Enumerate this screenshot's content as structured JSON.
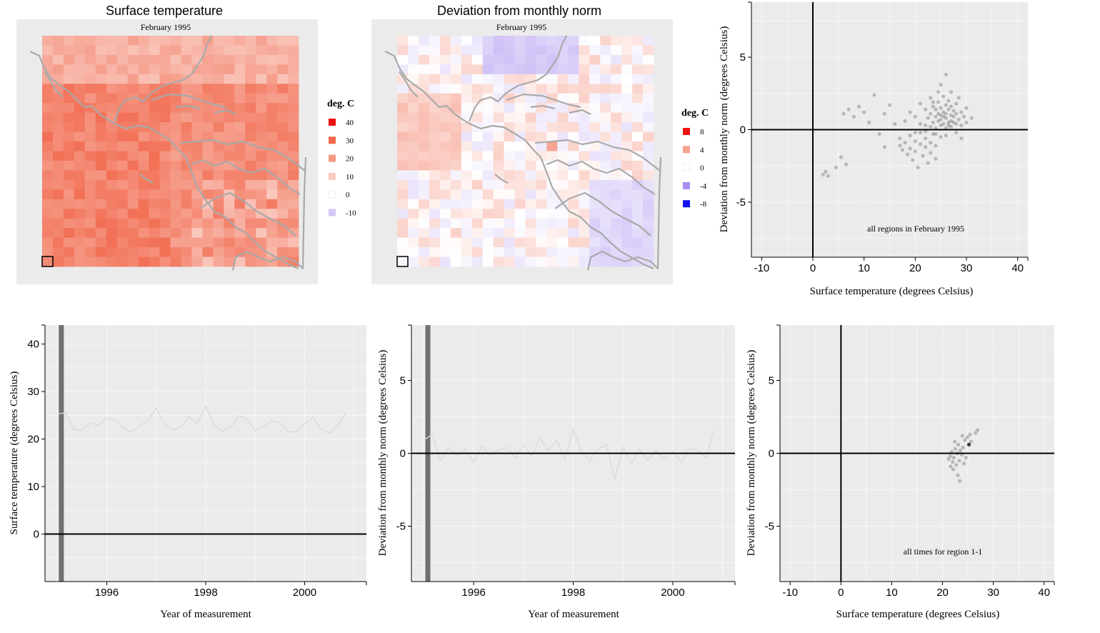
{
  "colors": {
    "panel_bg": "#ebebeb",
    "grid": "#f7f7f7",
    "coast": "#a9a9a9",
    "warm": "#ef1f10",
    "cold": "#2222ee",
    "sel_band": "#707070"
  },
  "map_left": {
    "title": "Surface temperature",
    "subtitle": "February 1995",
    "legend_title": "deg. C",
    "legend": [
      {
        "label": "40",
        "color": "#ee1111"
      },
      {
        "label": "30",
        "color": "#f1684c"
      },
      {
        "label": "20",
        "color": "#f59a82"
      },
      {
        "label": "10",
        "color": "#f9cbbd"
      },
      {
        "label": "0",
        "color": "#ffffff"
      },
      {
        "label": "-10",
        "color": "#d6c6f6"
      }
    ]
  },
  "map_right": {
    "title": "Deviation from monthly norm",
    "subtitle": "February 1995",
    "legend_title": "deg. C",
    "legend": [
      {
        "label": "8",
        "color": "#ee1111"
      },
      {
        "label": "4",
        "color": "#f7a38f"
      },
      {
        "label": "0",
        "color": "#ffffff"
      },
      {
        "label": "-4",
        "color": "#a98ef0"
      },
      {
        "label": "-8",
        "color": "#1111ee"
      }
    ]
  },
  "scatter_top": {
    "xlabel": "Surface temperature (degrees Celsius)",
    "ylabel": "Deviation from monthly norm (degrees Celsius)",
    "note": "all regions in February 1995",
    "xticks": [
      "-10",
      "0",
      "10",
      "20",
      "30",
      "40"
    ],
    "yticks": [
      "5",
      "0",
      "-5"
    ]
  },
  "line_temp": {
    "xlabel": "Year of measurement",
    "ylabel": "Surface temperature (degrees Celsius)",
    "xticks": [
      "1996",
      "1998",
      "2000"
    ],
    "yticks": [
      "40",
      "30",
      "20",
      "10",
      "0"
    ]
  },
  "line_dev": {
    "xlabel": "Year of measurement",
    "ylabel": "Deviation from monthly norm (degrees Celsius)",
    "xticks": [
      "1996",
      "1998",
      "2000"
    ],
    "yticks": [
      "5",
      "0",
      "-5"
    ]
  },
  "scatter_bottom": {
    "xlabel": "Surface temperature (degrees Celsius)",
    "ylabel": "Deviation from monthly norm (degrees Celsius)",
    "note": "all times for region 1-1",
    "xticks": [
      "-10",
      "0",
      "10",
      "20",
      "30",
      "40"
    ],
    "yticks": [
      "5",
      "0",
      "-5"
    ]
  },
  "chart_data": [
    {
      "type": "heatmap",
      "title": "Surface temperature",
      "subtitle": "February 1995",
      "grid": "24 x 24 regions",
      "value_range": [
        -10,
        40
      ],
      "selected_region": "1-1"
    },
    {
      "type": "heatmap",
      "title": "Deviation from monthly norm",
      "subtitle": "February 1995",
      "grid": "24 x 24 regions",
      "value_range": [
        -8,
        8
      ],
      "selected_region": "1-1"
    },
    {
      "type": "scatter",
      "xlabel": "Surface temperature (degrees Celsius)",
      "ylabel": "Deviation from monthly norm (degrees Celsius)",
      "xlim": [
        -12,
        42
      ],
      "ylim": [
        -8.8,
        8.8
      ],
      "annotation": "all regions in February 1995",
      "points": [
        [
          2,
          -3.1
        ],
        [
          2.5,
          -2.9
        ],
        [
          3,
          -3.2
        ],
        [
          4.5,
          -2.6
        ],
        [
          5.5,
          -1.9
        ],
        [
          6.5,
          -2.4
        ],
        [
          6,
          1.1
        ],
        [
          7,
          1.4
        ],
        [
          8,
          0.9
        ],
        [
          9,
          1.6
        ],
        [
          10,
          1.2
        ],
        [
          11,
          0.5
        ],
        [
          12,
          2.4
        ],
        [
          14,
          1.1
        ],
        [
          15,
          1.7
        ],
        [
          13,
          -0.3
        ],
        [
          14,
          -1.2
        ],
        [
          16,
          0.4
        ],
        [
          17,
          -0.6
        ],
        [
          17,
          -1.1
        ],
        [
          17.5,
          -1.4
        ],
        [
          18,
          -0.9
        ],
        [
          18.5,
          -1.7
        ],
        [
          19,
          -0.4
        ],
        [
          19,
          -1.3
        ],
        [
          19.5,
          -2.1
        ],
        [
          20,
          -0.8
        ],
        [
          20,
          -1.5
        ],
        [
          20.5,
          -2.6
        ],
        [
          21,
          -1.0
        ],
        [
          21,
          -0.2
        ],
        [
          21.5,
          -1.8
        ],
        [
          22,
          -0.6
        ],
        [
          22,
          -1.2
        ],
        [
          22.5,
          -2.3
        ],
        [
          23,
          -0.9
        ],
        [
          23,
          -1.6
        ],
        [
          23.5,
          -0.3
        ],
        [
          24,
          -1.1
        ],
        [
          24,
          -2.0
        ],
        [
          18,
          0.6
        ],
        [
          19,
          1.2
        ],
        [
          20,
          0.9
        ],
        [
          21,
          1.8
        ],
        [
          22,
          1.4
        ],
        [
          22,
          0.3
        ],
        [
          22.5,
          0.8
        ],
        [
          23,
          0.2
        ],
        [
          23,
          1.1
        ],
        [
          23.5,
          1.6
        ],
        [
          23.5,
          0.5
        ],
        [
          24,
          0.9
        ],
        [
          24,
          0.1
        ],
        [
          24,
          1.4
        ],
        [
          24.5,
          0.6
        ],
        [
          24.5,
          1.9
        ],
        [
          25,
          0.3
        ],
        [
          25,
          1.0
        ],
        [
          25,
          1.5
        ],
        [
          25,
          0.7
        ],
        [
          25.5,
          2.3
        ],
        [
          25.5,
          0.4
        ],
        [
          25.5,
          1.2
        ],
        [
          26,
          0.8
        ],
        [
          26,
          0.1
        ],
        [
          26,
          1.7
        ],
        [
          26,
          1.1
        ],
        [
          26.5,
          0.5
        ],
        [
          26.5,
          1.4
        ],
        [
          26.5,
          2.0
        ],
        [
          27,
          0.6
        ],
        [
          27,
          1.0
        ],
        [
          27,
          0.2
        ],
        [
          27,
          1.6
        ],
        [
          27.5,
          0.9
        ],
        [
          27.5,
          1.3
        ],
        [
          28,
          0.4
        ],
        [
          28,
          1.1
        ],
        [
          28,
          1.8
        ],
        [
          28.5,
          0.7
        ],
        [
          29,
          1.2
        ],
        [
          29,
          0.3
        ],
        [
          29.5,
          0.9
        ],
        [
          30,
          0.5
        ],
        [
          30,
          1.5
        ],
        [
          31,
          0.8
        ],
        [
          26,
          3.8
        ],
        [
          25,
          3.1
        ],
        [
          27,
          2.6
        ],
        [
          23,
          2.2
        ],
        [
          24,
          -0.3
        ],
        [
          25,
          -0.5
        ],
        [
          26,
          -0.4
        ],
        [
          28,
          -0.2
        ],
        [
          29,
          -0.6
        ],
        [
          22,
          -0.1
        ],
        [
          21,
          0.4
        ],
        [
          20,
          -0.2
        ],
        [
          24.5,
          1.1
        ],
        [
          25.5,
          0.9
        ],
        [
          26.5,
          0.3
        ],
        [
          27.5,
          0.5
        ],
        [
          23.5,
          1.9
        ],
        [
          24.5,
          2.6
        ],
        [
          28.5,
          2.2
        ]
      ]
    },
    {
      "type": "line",
      "xlabel": "Year of measurement",
      "ylabel": "Surface temperature (degrees Celsius)",
      "region": "1-1",
      "selected_time": 1995.08,
      "xlim": [
        1994.75,
        2001.25
      ],
      "ylim": [
        -10,
        44
      ],
      "x": [
        1995.0,
        1995.17,
        1995.33,
        1995.5,
        1995.67,
        1995.83,
        1996.0,
        1996.17,
        1996.33,
        1996.5,
        1996.67,
        1996.83,
        1997.0,
        1997.17,
        1997.33,
        1997.5,
        1997.67,
        1997.83,
        1998.0,
        1998.17,
        1998.33,
        1998.5,
        1998.67,
        1998.83,
        1999.0,
        1999.17,
        1999.33,
        1999.5,
        1999.67,
        1999.83,
        2000.0,
        2000.17,
        2000.33,
        2000.5,
        2000.67,
        2000.83
      ],
      "y": [
        25.2,
        25.6,
        22.1,
        21.8,
        23.5,
        22.9,
        24.4,
        24.1,
        22.3,
        21.5,
        22.8,
        24.0,
        26.5,
        23.1,
        21.9,
        22.6,
        24.7,
        23.3,
        26.9,
        23.0,
        21.7,
        22.4,
        24.9,
        24.2,
        21.8,
        22.6,
        23.9,
        23.4,
        21.6,
        21.5,
        23.2,
        24.6,
        22.2,
        21.3,
        22.9,
        25.4
      ]
    },
    {
      "type": "line",
      "xlabel": "Year of measurement",
      "ylabel": "Deviation from monthly norm (degrees Celsius)",
      "region": "1-1",
      "selected_time": 1995.08,
      "xlim": [
        1994.75,
        2001.25
      ],
      "ylim": [
        -8.8,
        8.8
      ],
      "x": [
        1995.0,
        1995.17,
        1995.33,
        1995.5,
        1995.67,
        1995.83,
        1996.0,
        1996.17,
        1996.33,
        1996.5,
        1996.67,
        1996.83,
        1997.0,
        1997.17,
        1997.33,
        1997.5,
        1997.67,
        1997.83,
        1998.0,
        1998.17,
        1998.33,
        1998.5,
        1998.67,
        1998.83,
        1999.0,
        1999.17,
        1999.33,
        1999.5,
        1999.67,
        1999.83,
        2000.0,
        2000.17,
        2000.33,
        2000.5,
        2000.67,
        2000.83
      ],
      "y": [
        0.9,
        1.3,
        -0.5,
        0.4,
        -0.2,
        0.3,
        -0.6,
        0.5,
        -0.1,
        0.2,
        0.4,
        -0.3,
        0.6,
        -0.2,
        1.1,
        0.2,
        0.9,
        -0.4,
        1.6,
        0.1,
        -0.5,
        0.3,
        0.6,
        -1.8,
        0.4,
        -0.7,
        0.3,
        -0.5,
        0.2,
        -0.4,
        0.1,
        -0.6,
        0.3,
        0.2,
        -0.3,
        1.6
      ]
    },
    {
      "type": "scatter",
      "xlabel": "Surface temperature (degrees Celsius)",
      "ylabel": "Deviation from monthly norm (degrees Celsius)",
      "xlim": [
        -12,
        42
      ],
      "ylim": [
        -8.8,
        8.8
      ],
      "annotation": "all times for region 1-1",
      "points": [
        [
          21.2,
          -0.4
        ],
        [
          21.5,
          -0.2
        ],
        [
          21.8,
          0.1
        ],
        [
          22.0,
          -0.6
        ],
        [
          22.2,
          -0.3
        ],
        [
          22.5,
          0.3
        ],
        [
          22.7,
          -0.8
        ],
        [
          22.9,
          0.0
        ],
        [
          23.1,
          0.6
        ],
        [
          23.3,
          -0.5
        ],
        [
          23.5,
          0.2
        ],
        [
          23.8,
          -0.1
        ],
        [
          24.0,
          0.4
        ],
        [
          24.2,
          -0.7
        ],
        [
          24.4,
          0.9
        ],
        [
          24.6,
          -0.3
        ],
        [
          24.9,
          1.1
        ],
        [
          25.2,
          0.6
        ],
        [
          25.4,
          1.3
        ],
        [
          25.6,
          0.8
        ],
        [
          26.9,
          1.6
        ],
        [
          26.5,
          1.4
        ],
        [
          22.1,
          -1.1
        ],
        [
          23.0,
          -1.5
        ],
        [
          23.4,
          -1.9
        ],
        [
          21.6,
          -0.9
        ],
        [
          22.4,
          0.8
        ],
        [
          23.9,
          1.2
        ]
      ]
    }
  ]
}
